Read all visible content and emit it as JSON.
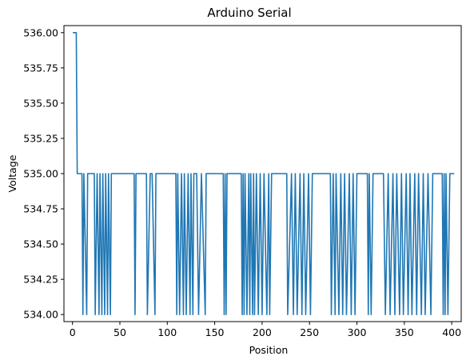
{
  "chart_data": {
    "type": "line",
    "title": "Arduino Serial",
    "xlabel": "Position",
    "ylabel": "Voltage",
    "xlim": [
      -9,
      410
    ],
    "ylim": [
      533.95,
      536.05
    ],
    "xticks": [
      0,
      50,
      100,
      150,
      200,
      250,
      300,
      350,
      400
    ],
    "xtick_labels": [
      "0",
      "50",
      "100",
      "150",
      "200",
      "250",
      "300",
      "350",
      "400"
    ],
    "yticks": [
      534.0,
      534.25,
      534.5,
      534.75,
      535.0,
      535.25,
      535.5,
      535.75,
      536.0
    ],
    "ytick_labels": [
      "534.00",
      "534.25",
      "534.50",
      "534.75",
      "535.00",
      "535.25",
      "535.50",
      "535.75",
      "536.00"
    ],
    "grid": false,
    "series": [
      {
        "color": "#1f77b4",
        "x": [
          1,
          3,
          4,
          5,
          8,
          10,
          11,
          12,
          15,
          16,
          18,
          23,
          24,
          26,
          28,
          29,
          31,
          32,
          34,
          35,
          37,
          38,
          40,
          41,
          65,
          66,
          67,
          78,
          79,
          82,
          84,
          87,
          88,
          109,
          110,
          111,
          113,
          115,
          117,
          118,
          120,
          122,
          124,
          125,
          127,
          128,
          131,
          133,
          136,
          140,
          141,
          142,
          159,
          160,
          161,
          162,
          163,
          164,
          178,
          179,
          180,
          181,
          182,
          184,
          186,
          187,
          188,
          190,
          191,
          192,
          194,
          196,
          198,
          200,
          202,
          205,
          207,
          208,
          210,
          226,
          227,
          231,
          233,
          235,
          237,
          240,
          242,
          244,
          246,
          249,
          251,
          253,
          255,
          272,
          273,
          275,
          277,
          278,
          281,
          283,
          285,
          287,
          289,
          292,
          294,
          296,
          298,
          300,
          311,
          312,
          313,
          315,
          317,
          319,
          328,
          330,
          333,
          335,
          338,
          340,
          342,
          345,
          347,
          349,
          352,
          354,
          356,
          358,
          361,
          363,
          365,
          368,
          370,
          372,
          375,
          378,
          380,
          390,
          391,
          392,
          393,
          394,
          396,
          398,
          400,
          402
        ],
        "y": [
          536,
          536,
          536,
          535,
          535,
          535,
          534,
          535,
          534,
          535,
          535,
          535,
          534,
          535,
          534,
          535,
          534,
          535,
          534,
          535,
          534,
          535,
          534,
          535,
          535,
          534,
          535,
          535,
          534,
          535,
          535,
          534,
          535,
          535,
          534,
          535,
          534,
          535,
          534,
          535,
          534,
          535,
          534,
          535,
          534,
          535,
          535,
          534,
          535,
          534,
          535,
          535,
          535,
          534,
          535,
          534,
          535,
          535,
          535,
          534,
          535,
          534,
          535,
          534,
          535,
          534,
          535,
          534,
          535,
          534,
          535,
          534,
          535,
          534,
          535,
          534,
          535,
          534,
          535,
          535,
          534,
          535,
          534,
          535,
          534,
          535,
          534,
          535,
          534,
          535,
          534,
          535,
          535,
          535,
          534,
          535,
          534,
          535,
          534,
          535,
          534,
          535,
          534,
          535,
          534,
          535,
          534,
          535,
          535,
          534,
          535,
          534,
          535,
          535,
          535,
          534,
          535,
          534,
          535,
          534,
          535,
          534,
          535,
          534,
          535,
          534,
          535,
          534,
          535,
          534,
          535,
          534,
          535,
          534,
          535,
          534,
          535,
          535,
          534,
          535,
          534,
          535,
          534,
          535,
          535,
          535
        ]
      }
    ]
  }
}
